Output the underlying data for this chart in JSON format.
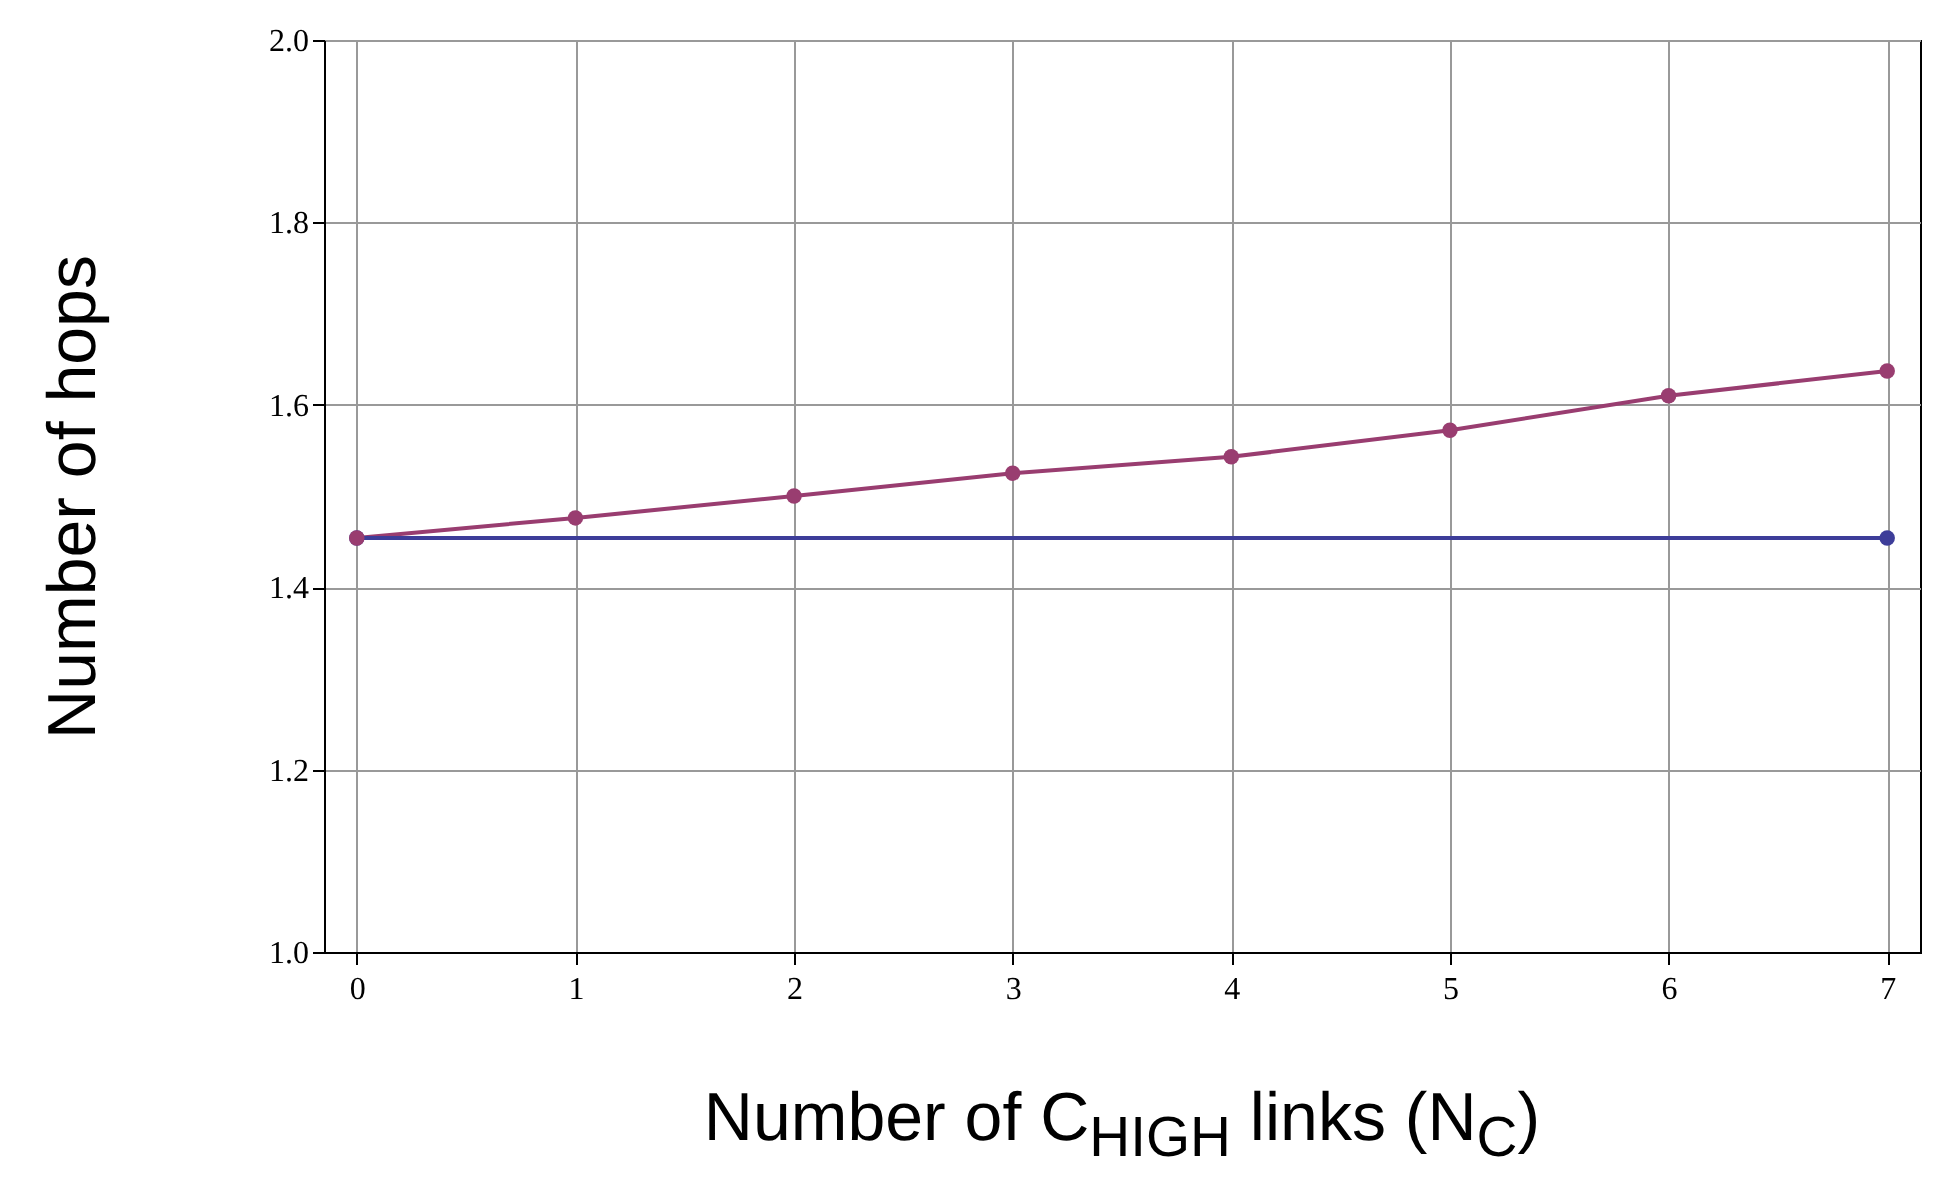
{
  "chart_data": {
    "type": "line",
    "xlabel": "Number of C$_{HIGH}$ links (N$_{C}$)",
    "ylabel": "Number of hops",
    "x": [
      0,
      1,
      2,
      3,
      4,
      5,
      6,
      7
    ],
    "series": [
      {
        "color": "#993d70",
        "values": [
          1.454,
          1.476,
          1.5,
          1.525,
          1.543,
          1.572,
          1.61,
          1.637
        ]
      },
      {
        "color": "#3d3d99",
        "x": [
          0,
          7
        ],
        "values": [
          1.454,
          1.454
        ]
      }
    ],
    "xlim": [
      -0.15,
      7.15
    ],
    "xticks": [
      0,
      1,
      2,
      3,
      4,
      5,
      6,
      7
    ],
    "ylim": [
      1.0,
      2.0
    ],
    "yticks": [
      {
        "value": 1.0,
        "label": "1.0"
      },
      {
        "value": 1.2,
        "label": "1.2"
      },
      {
        "value": 1.4,
        "label": "1.4"
      },
      {
        "value": 1.6,
        "label": "1.6"
      },
      {
        "value": 1.8,
        "label": "1.8"
      },
      {
        "value": 2.0,
        "label": "2.0"
      }
    ],
    "grid": true,
    "marker": "circle"
  }
}
